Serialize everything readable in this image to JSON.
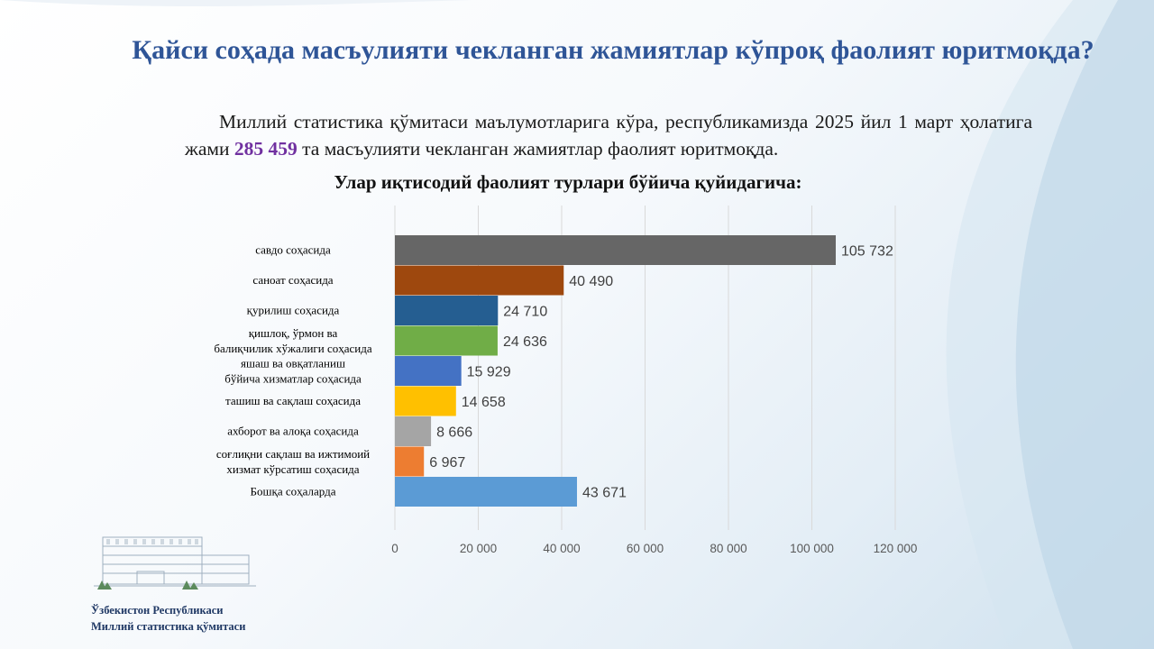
{
  "slide": {
    "title": "Қайси соҳада масъулияти чекланган жамиятлар кўпроқ фаолият юритмоқда?",
    "intro_before": "Миллий статистика қўмитаси маълумотларига кўра, республикамизда 2025 йил 1 март ҳолатига жами",
    "intro_highlight": "285 459",
    "intro_after": "та масъулияти чекланган жамиятлар фаолият юритмоқда.",
    "subtitle": "Улар иқтисодий фаолият турлари бўйича қуйидагича:",
    "org_line1": "Ўзбекистон  Республикаси",
    "org_line2": "Миллий  статистика  қўмитаси",
    "highlight_color": "#7030a0",
    "title_color": "#2f5597"
  },
  "chart_data": {
    "type": "bar",
    "orientation": "horizontal",
    "categories": [
      [
        "савдо соҳасида"
      ],
      [
        "саноат соҳасида"
      ],
      [
        "қурилиш  соҳасида"
      ],
      [
        "қишлоқ, ўрмон ва",
        "балиқчилик хўжалиги соҳасида"
      ],
      [
        "яшаш ва овқатланиш",
        "бўйича хизматлар соҳасида"
      ],
      [
        "ташиш ва сақлаш соҳасида"
      ],
      [
        "ахборот ва алоқа соҳасида"
      ],
      [
        "соғлиқни  сақлаш ва ижтимоий",
        "хизмат кўрсатиш соҳасида"
      ],
      [
        "Бошқа соҳаларда"
      ]
    ],
    "values": [
      105732,
      40490,
      24710,
      24636,
      15929,
      14658,
      8666,
      6967,
      43671
    ],
    "value_labels": [
      "105 732",
      "40 490",
      "24 710",
      "24 636",
      "15 929",
      "14 658",
      "8 666",
      "6 967",
      "43 671"
    ],
    "colors": [
      "#666666",
      "#9e480e",
      "#255e91",
      "#70ad47",
      "#4472c4",
      "#ffc000",
      "#a5a5a5",
      "#ed7d31",
      "#5b9bd5"
    ],
    "xlim": [
      0,
      120000
    ],
    "xticks": [
      0,
      20000,
      40000,
      60000,
      80000,
      100000,
      120000
    ],
    "xtick_labels": [
      "0",
      "20 000",
      "40 000",
      "60 000",
      "80 000",
      "100 000",
      "120 000"
    ],
    "grid": true,
    "legend": "none"
  }
}
